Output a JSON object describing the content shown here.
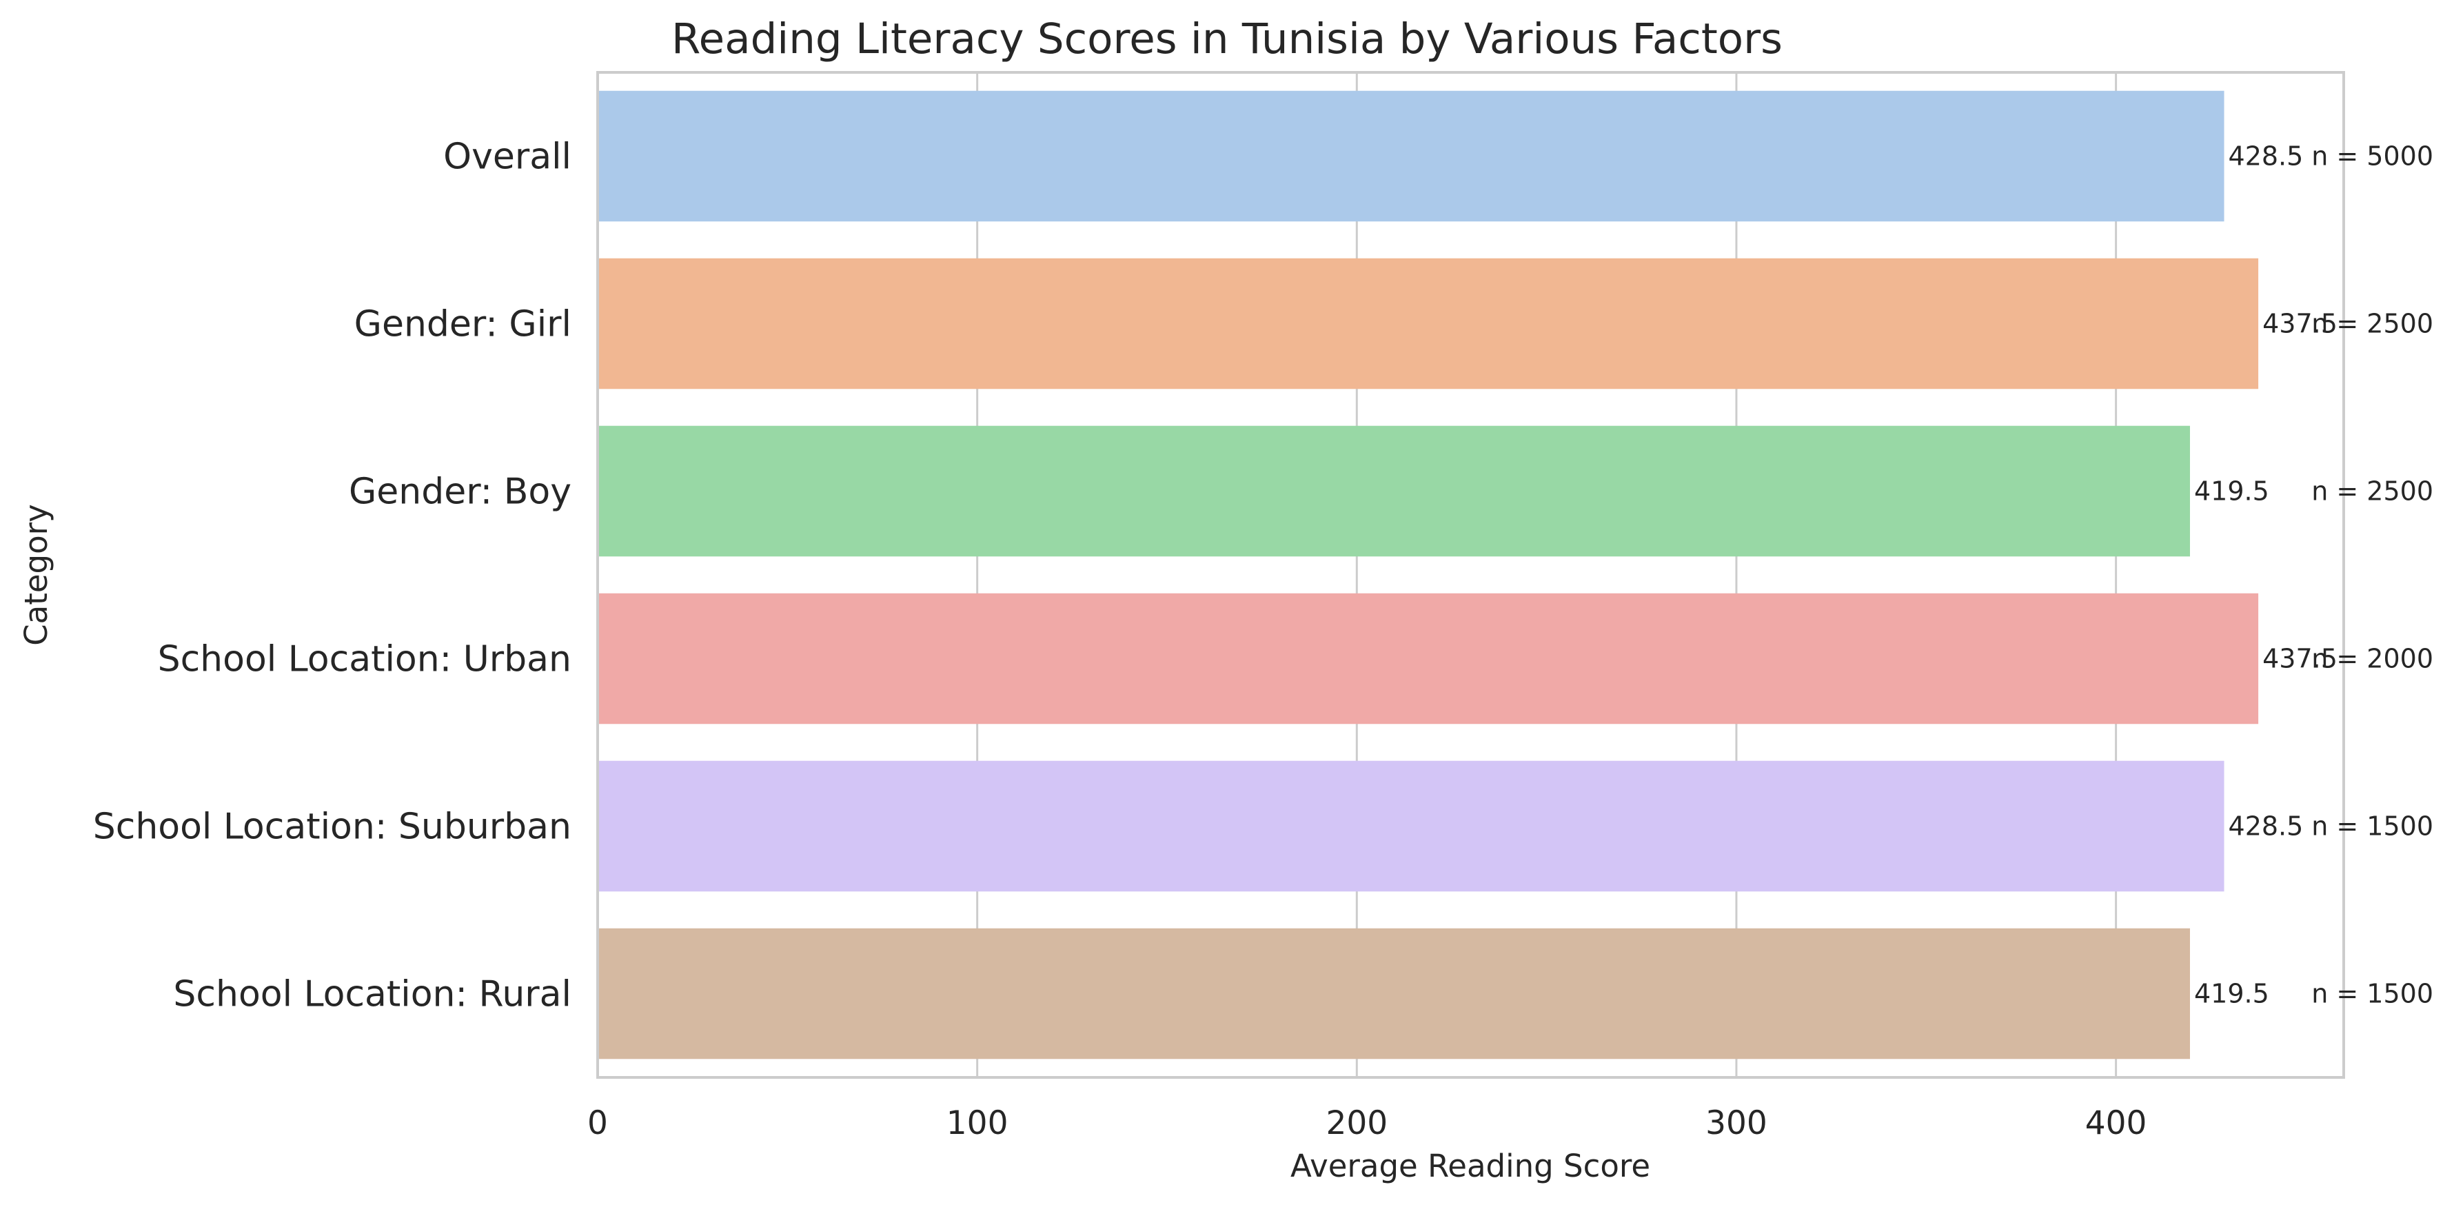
{
  "chart_data": {
    "type": "bar",
    "orientation": "horizontal",
    "title": "Reading Literacy Scores in Tunisia by Various Factors",
    "xlabel": "Average Reading Score",
    "ylabel": "Category",
    "xlim": [
      0,
      460
    ],
    "xticks": [
      0,
      100,
      200,
      300,
      400
    ],
    "grid": "x",
    "categories": [
      "Overall",
      "Gender: Girl",
      "Gender: Boy",
      "School Location: Urban",
      "School Location: Suburban",
      "School Location: Rural"
    ],
    "values": [
      428.5,
      437.5,
      419.5,
      437.5,
      428.5,
      419.5
    ],
    "value_labels": [
      "428.5",
      "437.5",
      "419.5",
      "437.5",
      "428.5",
      "419.5"
    ],
    "n_labels": [
      "n = 5000",
      "n = 2500",
      "n = 2500",
      "n = 2000",
      "n = 1500",
      "n = 1500"
    ],
    "colors": [
      "#abc9ea",
      "#f1b792",
      "#98d8a5",
      "#f0a9a7",
      "#d3c5f6",
      "#d5b9a1"
    ]
  }
}
